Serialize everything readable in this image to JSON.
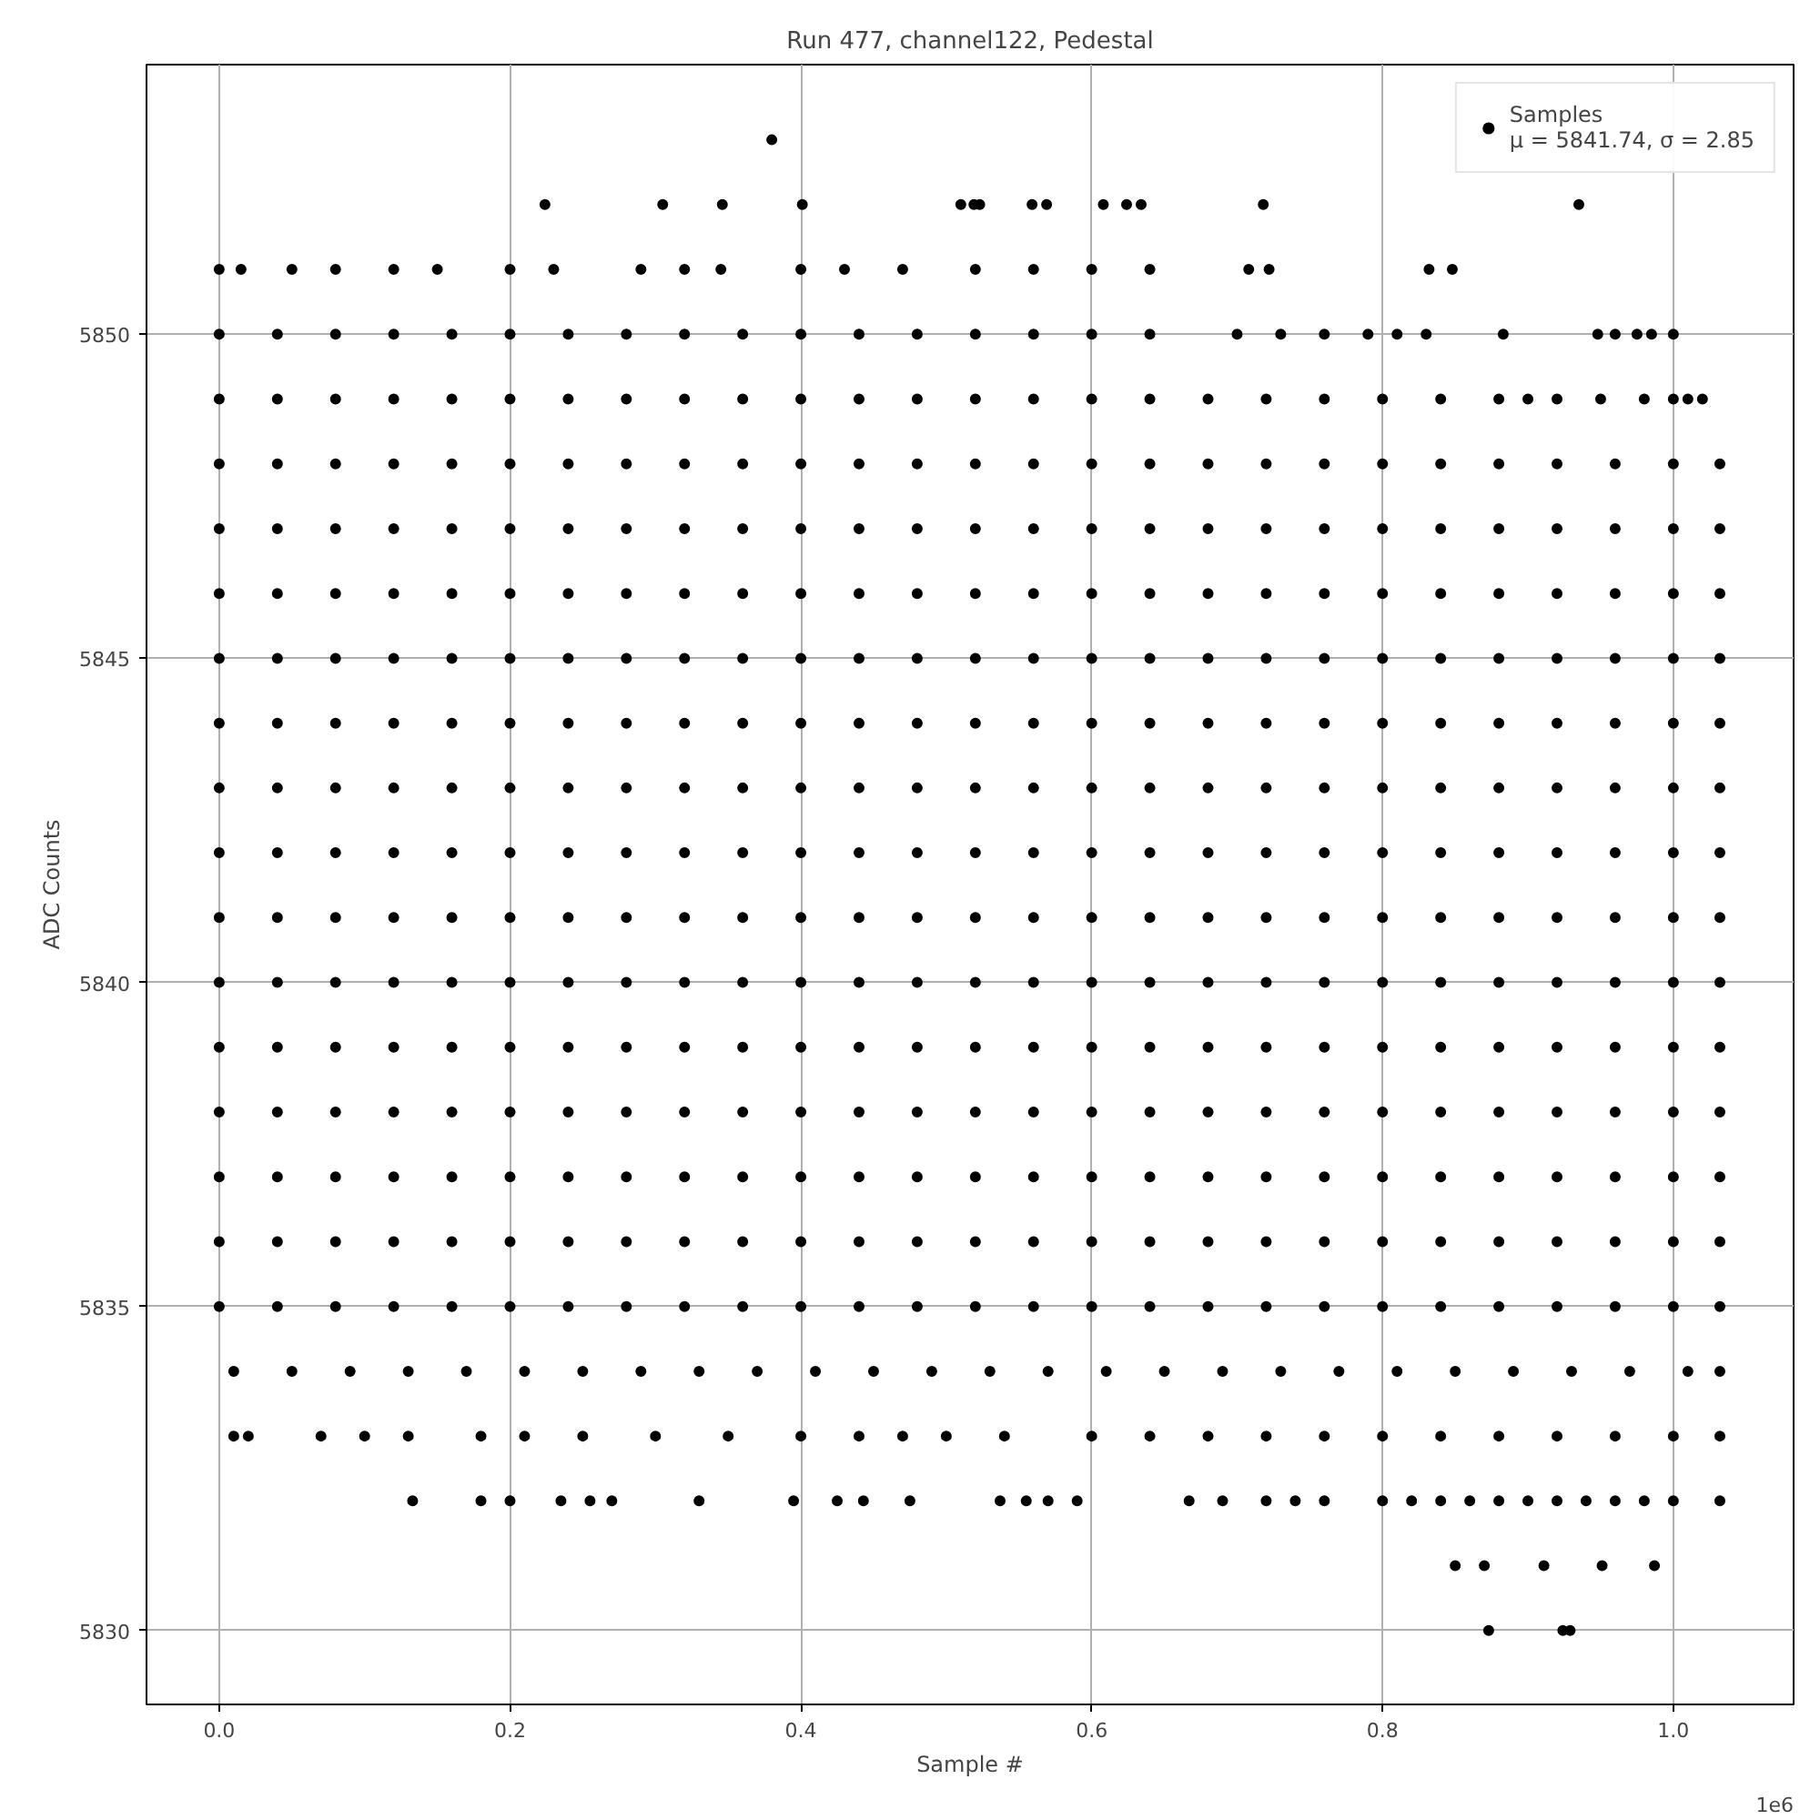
{
  "chart_data": {
    "type": "scatter",
    "title": "Run 477, channel122, Pedestal",
    "xlabel": "Sample #",
    "ylabel": "ADC Counts",
    "annotations": [
      "1e6"
    ],
    "xlim": [
      -0.05,
      1.0827
    ],
    "ylim": [
      5828.86,
      5854.16
    ],
    "xticks": [
      {
        "value": 0,
        "label": "0.0"
      },
      0.2,
      0.4,
      0.6,
      0.8,
      {
        "value": 1,
        "label": "1.0"
      }
    ],
    "yticks": [
      5830,
      5835,
      5840,
      5845,
      5850
    ],
    "grid": true,
    "legend": "top right",
    "marker": "circle",
    "series": [
      {
        "name": "Samples\nμ = 5841.74, σ = 2.85",
        "color": "#000000",
        "x": [
          0.38,
          0.224,
          0.305,
          0.346,
          0.401,
          0.51,
          0.519,
          0.523,
          0.559,
          0.569,
          0.608,
          0.624,
          0.634,
          0.718,
          0.935,
          0,
          0.015,
          0.05,
          0.08,
          0.12,
          0.15,
          0.2,
          0.23,
          0.29,
          0.32,
          0.345,
          0.4,
          0.43,
          0.47,
          0.52,
          0.56,
          0.6,
          0.64,
          0.708,
          0.722,
          0.832,
          0.848,
          0,
          0.04,
          0.08,
          0.12,
          0.16,
          0.2,
          0.24,
          0.28,
          0.32,
          0.36,
          0.4,
          0.44,
          0.48,
          0.52,
          0.56,
          0.6,
          0.64,
          0.7,
          0.73,
          0.76,
          0.79,
          0.81,
          0.83,
          0.883,
          0.948,
          0.96,
          0.975,
          0.985,
          1,
          0,
          0.04,
          0.08,
          0.12,
          0.16,
          0.2,
          0.24,
          0.28,
          0.32,
          0.36,
          0.4,
          0.44,
          0.48,
          0.52,
          0.56,
          0.6,
          0.64,
          0.68,
          0.72,
          0.76,
          0.8,
          0.84,
          0.88,
          0.9,
          0.92,
          0.95,
          0.98,
          1,
          1.01,
          1.02,
          0,
          0.04,
          0.08,
          0.12,
          0.16,
          0.2,
          0.24,
          0.28,
          0.32,
          0.36,
          0.4,
          0.44,
          0.48,
          0.52,
          0.56,
          0.6,
          0.64,
          0.68,
          0.72,
          0.76,
          0.8,
          0.84,
          0.88,
          0.92,
          0.96,
          1,
          1.032,
          0,
          0.04,
          0.08,
          0.12,
          0.16,
          0.2,
          0.24,
          0.28,
          0.32,
          0.36,
          0.4,
          0.44,
          0.48,
          0.52,
          0.56,
          0.6,
          0.64,
          0.68,
          0.72,
          0.76,
          0.8,
          0.84,
          0.88,
          0.92,
          0.96,
          1,
          1.032,
          0,
          0.04,
          0.08,
          0.12,
          0.16,
          0.2,
          0.24,
          0.28,
          0.32,
          0.36,
          0.4,
          0.44,
          0.48,
          0.52,
          0.56,
          0.6,
          0.64,
          0.68,
          0.72,
          0.76,
          0.8,
          0.84,
          0.88,
          0.92,
          0.96,
          1,
          1.032,
          0,
          0.04,
          0.08,
          0.12,
          0.16,
          0.2,
          0.24,
          0.28,
          0.32,
          0.36,
          0.4,
          0.44,
          0.48,
          0.52,
          0.56,
          0.6,
          0.64,
          0.68,
          0.72,
          0.76,
          0.8,
          0.84,
          0.88,
          0.92,
          0.96,
          1,
          1.032,
          0,
          0.04,
          0.08,
          0.12,
          0.16,
          0.2,
          0.24,
          0.28,
          0.32,
          0.36,
          0.4,
          0.44,
          0.48,
          0.52,
          0.56,
          0.6,
          0.64,
          0.68,
          0.72,
          0.76,
          0.8,
          0.84,
          0.88,
          0.92,
          0.96,
          1,
          1.032,
          0,
          0.04,
          0.08,
          0.12,
          0.16,
          0.2,
          0.24,
          0.28,
          0.32,
          0.36,
          0.4,
          0.44,
          0.48,
          0.52,
          0.56,
          0.6,
          0.64,
          0.68,
          0.72,
          0.76,
          0.8,
          0.84,
          0.88,
          0.92,
          0.96,
          1,
          1.032,
          0,
          0.04,
          0.08,
          0.12,
          0.16,
          0.2,
          0.24,
          0.28,
          0.32,
          0.36,
          0.4,
          0.44,
          0.48,
          0.52,
          0.56,
          0.6,
          0.64,
          0.68,
          0.72,
          0.76,
          0.8,
          0.84,
          0.88,
          0.92,
          0.96,
          1,
          1.032,
          0,
          0.04,
          0.08,
          0.12,
          0.16,
          0.2,
          0.24,
          0.28,
          0.32,
          0.36,
          0.4,
          0.44,
          0.48,
          0.52,
          0.56,
          0.6,
          0.64,
          0.68,
          0.72,
          0.76,
          0.8,
          0.84,
          0.88,
          0.92,
          0.96,
          1,
          1.032,
          0,
          0.04,
          0.08,
          0.12,
          0.16,
          0.2,
          0.24,
          0.28,
          0.32,
          0.36,
          0.4,
          0.44,
          0.48,
          0.52,
          0.56,
          0.6,
          0.64,
          0.68,
          0.72,
          0.76,
          0.8,
          0.84,
          0.88,
          0.92,
          0.96,
          1,
          1.032,
          0,
          0.04,
          0.08,
          0.12,
          0.16,
          0.2,
          0.24,
          0.28,
          0.32,
          0.36,
          0.4,
          0.44,
          0.48,
          0.52,
          0.56,
          0.6,
          0.64,
          0.68,
          0.72,
          0.76,
          0.8,
          0.84,
          0.88,
          0.92,
          0.96,
          1,
          1.032,
          0,
          0.04,
          0.08,
          0.12,
          0.16,
          0.2,
          0.24,
          0.28,
          0.32,
          0.36,
          0.4,
          0.44,
          0.48,
          0.52,
          0.56,
          0.6,
          0.64,
          0.68,
          0.72,
          0.76,
          0.8,
          0.84,
          0.88,
          0.92,
          0.96,
          1,
          1.032,
          0,
          0.04,
          0.08,
          0.12,
          0.16,
          0.2,
          0.24,
          0.28,
          0.32,
          0.36,
          0.4,
          0.44,
          0.48,
          0.52,
          0.56,
          0.6,
          0.64,
          0.68,
          0.72,
          0.76,
          0.8,
          0.84,
          0.88,
          0.92,
          0.96,
          1,
          1.032,
          0,
          0.04,
          0.08,
          0.12,
          0.16,
          0.2,
          0.24,
          0.28,
          0.32,
          0.36,
          0.4,
          0.44,
          0.48,
          0.52,
          0.56,
          0.6,
          0.64,
          0.68,
          0.72,
          0.76,
          0.8,
          0.84,
          0.88,
          0.92,
          0.96,
          1,
          1.032,
          0,
          0.04,
          0.08,
          0.12,
          0.16,
          0.2,
          0.24,
          0.28,
          0.32,
          0.36,
          0.4,
          0.44,
          0.48,
          0.52,
          0.56,
          0.6,
          0.64,
          0.68,
          0.72,
          0.76,
          0.8,
          0.84,
          0.88,
          0.92,
          0.96,
          1,
          1.032,
          0.01,
          0.05,
          0.09,
          0.13,
          0.17,
          0.21,
          0.25,
          0.29,
          0.33,
          0.37,
          0.41,
          0.45,
          0.49,
          0.53,
          0.57,
          0.61,
          0.65,
          0.69,
          0.73,
          0.77,
          0.81,
          0.85,
          0.89,
          0.93,
          0.97,
          1.01,
          1.032,
          0.01,
          0.02,
          0.07,
          0.1,
          0.13,
          0.18,
          0.21,
          0.25,
          0.3,
          0.35,
          0.4,
          0.44,
          0.47,
          0.5,
          0.54,
          0.6,
          0.64,
          0.68,
          0.72,
          0.76,
          0.8,
          0.84,
          0.88,
          0.92,
          0.96,
          1,
          1.032,
          0.133,
          0.18,
          0.2,
          0.235,
          0.255,
          0.27,
          0.33,
          0.395,
          0.425,
          0.443,
          0.475,
          0.537,
          0.555,
          0.57,
          0.59,
          0.667,
          0.69,
          0.72,
          0.74,
          0.76,
          0.8,
          0.82,
          0.84,
          0.86,
          0.88,
          0.9,
          0.92,
          0.94,
          0.96,
          0.98,
          1,
          1.032,
          0.85,
          0.87,
          0.911,
          0.951,
          0.987,
          0.873,
          0.924,
          0.929
        ],
        "values": [
          5853,
          5852,
          5852,
          5852,
          5852,
          5852,
          5852,
          5852,
          5852,
          5852,
          5852,
          5852,
          5852,
          5852,
          5852,
          5851,
          5851,
          5851,
          5851,
          5851,
          5851,
          5851,
          5851,
          5851,
          5851,
          5851,
          5851,
          5851,
          5851,
          5851,
          5851,
          5851,
          5851,
          5851,
          5851,
          5851,
          5851,
          5850,
          5850,
          5850,
          5850,
          5850,
          5850,
          5850,
          5850,
          5850,
          5850,
          5850,
          5850,
          5850,
          5850,
          5850,
          5850,
          5850,
          5850,
          5850,
          5850,
          5850,
          5850,
          5850,
          5850,
          5850,
          5850,
          5850,
          5850,
          5850,
          5849,
          5849,
          5849,
          5849,
          5849,
          5849,
          5849,
          5849,
          5849,
          5849,
          5849,
          5849,
          5849,
          5849,
          5849,
          5849,
          5849,
          5849,
          5849,
          5849,
          5849,
          5849,
          5849,
          5849,
          5849,
          5849,
          5849,
          5849,
          5849,
          5849,
          5848,
          5848,
          5848,
          5848,
          5848,
          5848,
          5848,
          5848,
          5848,
          5848,
          5848,
          5848,
          5848,
          5848,
          5848,
          5848,
          5848,
          5848,
          5848,
          5848,
          5848,
          5848,
          5848,
          5848,
          5848,
          5848,
          5848,
          5847,
          5847,
          5847,
          5847,
          5847,
          5847,
          5847,
          5847,
          5847,
          5847,
          5847,
          5847,
          5847,
          5847,
          5847,
          5847,
          5847,
          5847,
          5847,
          5847,
          5847,
          5847,
          5847,
          5847,
          5847,
          5847,
          5847,
          5846,
          5846,
          5846,
          5846,
          5846,
          5846,
          5846,
          5846,
          5846,
          5846,
          5846,
          5846,
          5846,
          5846,
          5846,
          5846,
          5846,
          5846,
          5846,
          5846,
          5846,
          5846,
          5846,
          5846,
          5846,
          5846,
          5846,
          5845,
          5845,
          5845,
          5845,
          5845,
          5845,
          5845,
          5845,
          5845,
          5845,
          5845,
          5845,
          5845,
          5845,
          5845,
          5845,
          5845,
          5845,
          5845,
          5845,
          5845,
          5845,
          5845,
          5845,
          5845,
          5845,
          5845,
          5844,
          5844,
          5844,
          5844,
          5844,
          5844,
          5844,
          5844,
          5844,
          5844,
          5844,
          5844,
          5844,
          5844,
          5844,
          5844,
          5844,
          5844,
          5844,
          5844,
          5844,
          5844,
          5844,
          5844,
          5844,
          5844,
          5844,
          5843,
          5843,
          5843,
          5843,
          5843,
          5843,
          5843,
          5843,
          5843,
          5843,
          5843,
          5843,
          5843,
          5843,
          5843,
          5843,
          5843,
          5843,
          5843,
          5843,
          5843,
          5843,
          5843,
          5843,
          5843,
          5843,
          5843,
          5842,
          5842,
          5842,
          5842,
          5842,
          5842,
          5842,
          5842,
          5842,
          5842,
          5842,
          5842,
          5842,
          5842,
          5842,
          5842,
          5842,
          5842,
          5842,
          5842,
          5842,
          5842,
          5842,
          5842,
          5842,
          5842,
          5842,
          5841,
          5841,
          5841,
          5841,
          5841,
          5841,
          5841,
          5841,
          5841,
          5841,
          5841,
          5841,
          5841,
          5841,
          5841,
          5841,
          5841,
          5841,
          5841,
          5841,
          5841,
          5841,
          5841,
          5841,
          5841,
          5841,
          5841,
          5840,
          5840,
          5840,
          5840,
          5840,
          5840,
          5840,
          5840,
          5840,
          5840,
          5840,
          5840,
          5840,
          5840,
          5840,
          5840,
          5840,
          5840,
          5840,
          5840,
          5840,
          5840,
          5840,
          5840,
          5840,
          5840,
          5840,
          5839,
          5839,
          5839,
          5839,
          5839,
          5839,
          5839,
          5839,
          5839,
          5839,
          5839,
          5839,
          5839,
          5839,
          5839,
          5839,
          5839,
          5839,
          5839,
          5839,
          5839,
          5839,
          5839,
          5839,
          5839,
          5839,
          5839,
          5838,
          5838,
          5838,
          5838,
          5838,
          5838,
          5838,
          5838,
          5838,
          5838,
          5838,
          5838,
          5838,
          5838,
          5838,
          5838,
          5838,
          5838,
          5838,
          5838,
          5838,
          5838,
          5838,
          5838,
          5838,
          5838,
          5838,
          5837,
          5837,
          5837,
          5837,
          5837,
          5837,
          5837,
          5837,
          5837,
          5837,
          5837,
          5837,
          5837,
          5837,
          5837,
          5837,
          5837,
          5837,
          5837,
          5837,
          5837,
          5837,
          5837,
          5837,
          5837,
          5837,
          5837,
          5836,
          5836,
          5836,
          5836,
          5836,
          5836,
          5836,
          5836,
          5836,
          5836,
          5836,
          5836,
          5836,
          5836,
          5836,
          5836,
          5836,
          5836,
          5836,
          5836,
          5836,
          5836,
          5836,
          5836,
          5836,
          5836,
          5836,
          5835,
          5835,
          5835,
          5835,
          5835,
          5835,
          5835,
          5835,
          5835,
          5835,
          5835,
          5835,
          5835,
          5835,
          5835,
          5835,
          5835,
          5835,
          5835,
          5835,
          5835,
          5835,
          5835,
          5835,
          5835,
          5835,
          5835,
          5834,
          5834,
          5834,
          5834,
          5834,
          5834,
          5834,
          5834,
          5834,
          5834,
          5834,
          5834,
          5834,
          5834,
          5834,
          5834,
          5834,
          5834,
          5834,
          5834,
          5834,
          5834,
          5834,
          5834,
          5834,
          5834,
          5834,
          5833,
          5833,
          5833,
          5833,
          5833,
          5833,
          5833,
          5833,
          5833,
          5833,
          5833,
          5833,
          5833,
          5833,
          5833,
          5833,
          5833,
          5833,
          5833,
          5833,
          5833,
          5833,
          5833,
          5833,
          5833,
          5833,
          5833,
          5832,
          5832,
          5832,
          5832,
          5832,
          5832,
          5832,
          5832,
          5832,
          5832,
          5832,
          5832,
          5832,
          5832,
          5832,
          5832,
          5832,
          5832,
          5832,
          5832,
          5832,
          5832,
          5832,
          5832,
          5832,
          5832,
          5832,
          5832,
          5832,
          5832,
          5832,
          5832,
          5831,
          5831,
          5831,
          5831,
          5831,
          5830,
          5830,
          5830
        ]
      }
    ]
  }
}
